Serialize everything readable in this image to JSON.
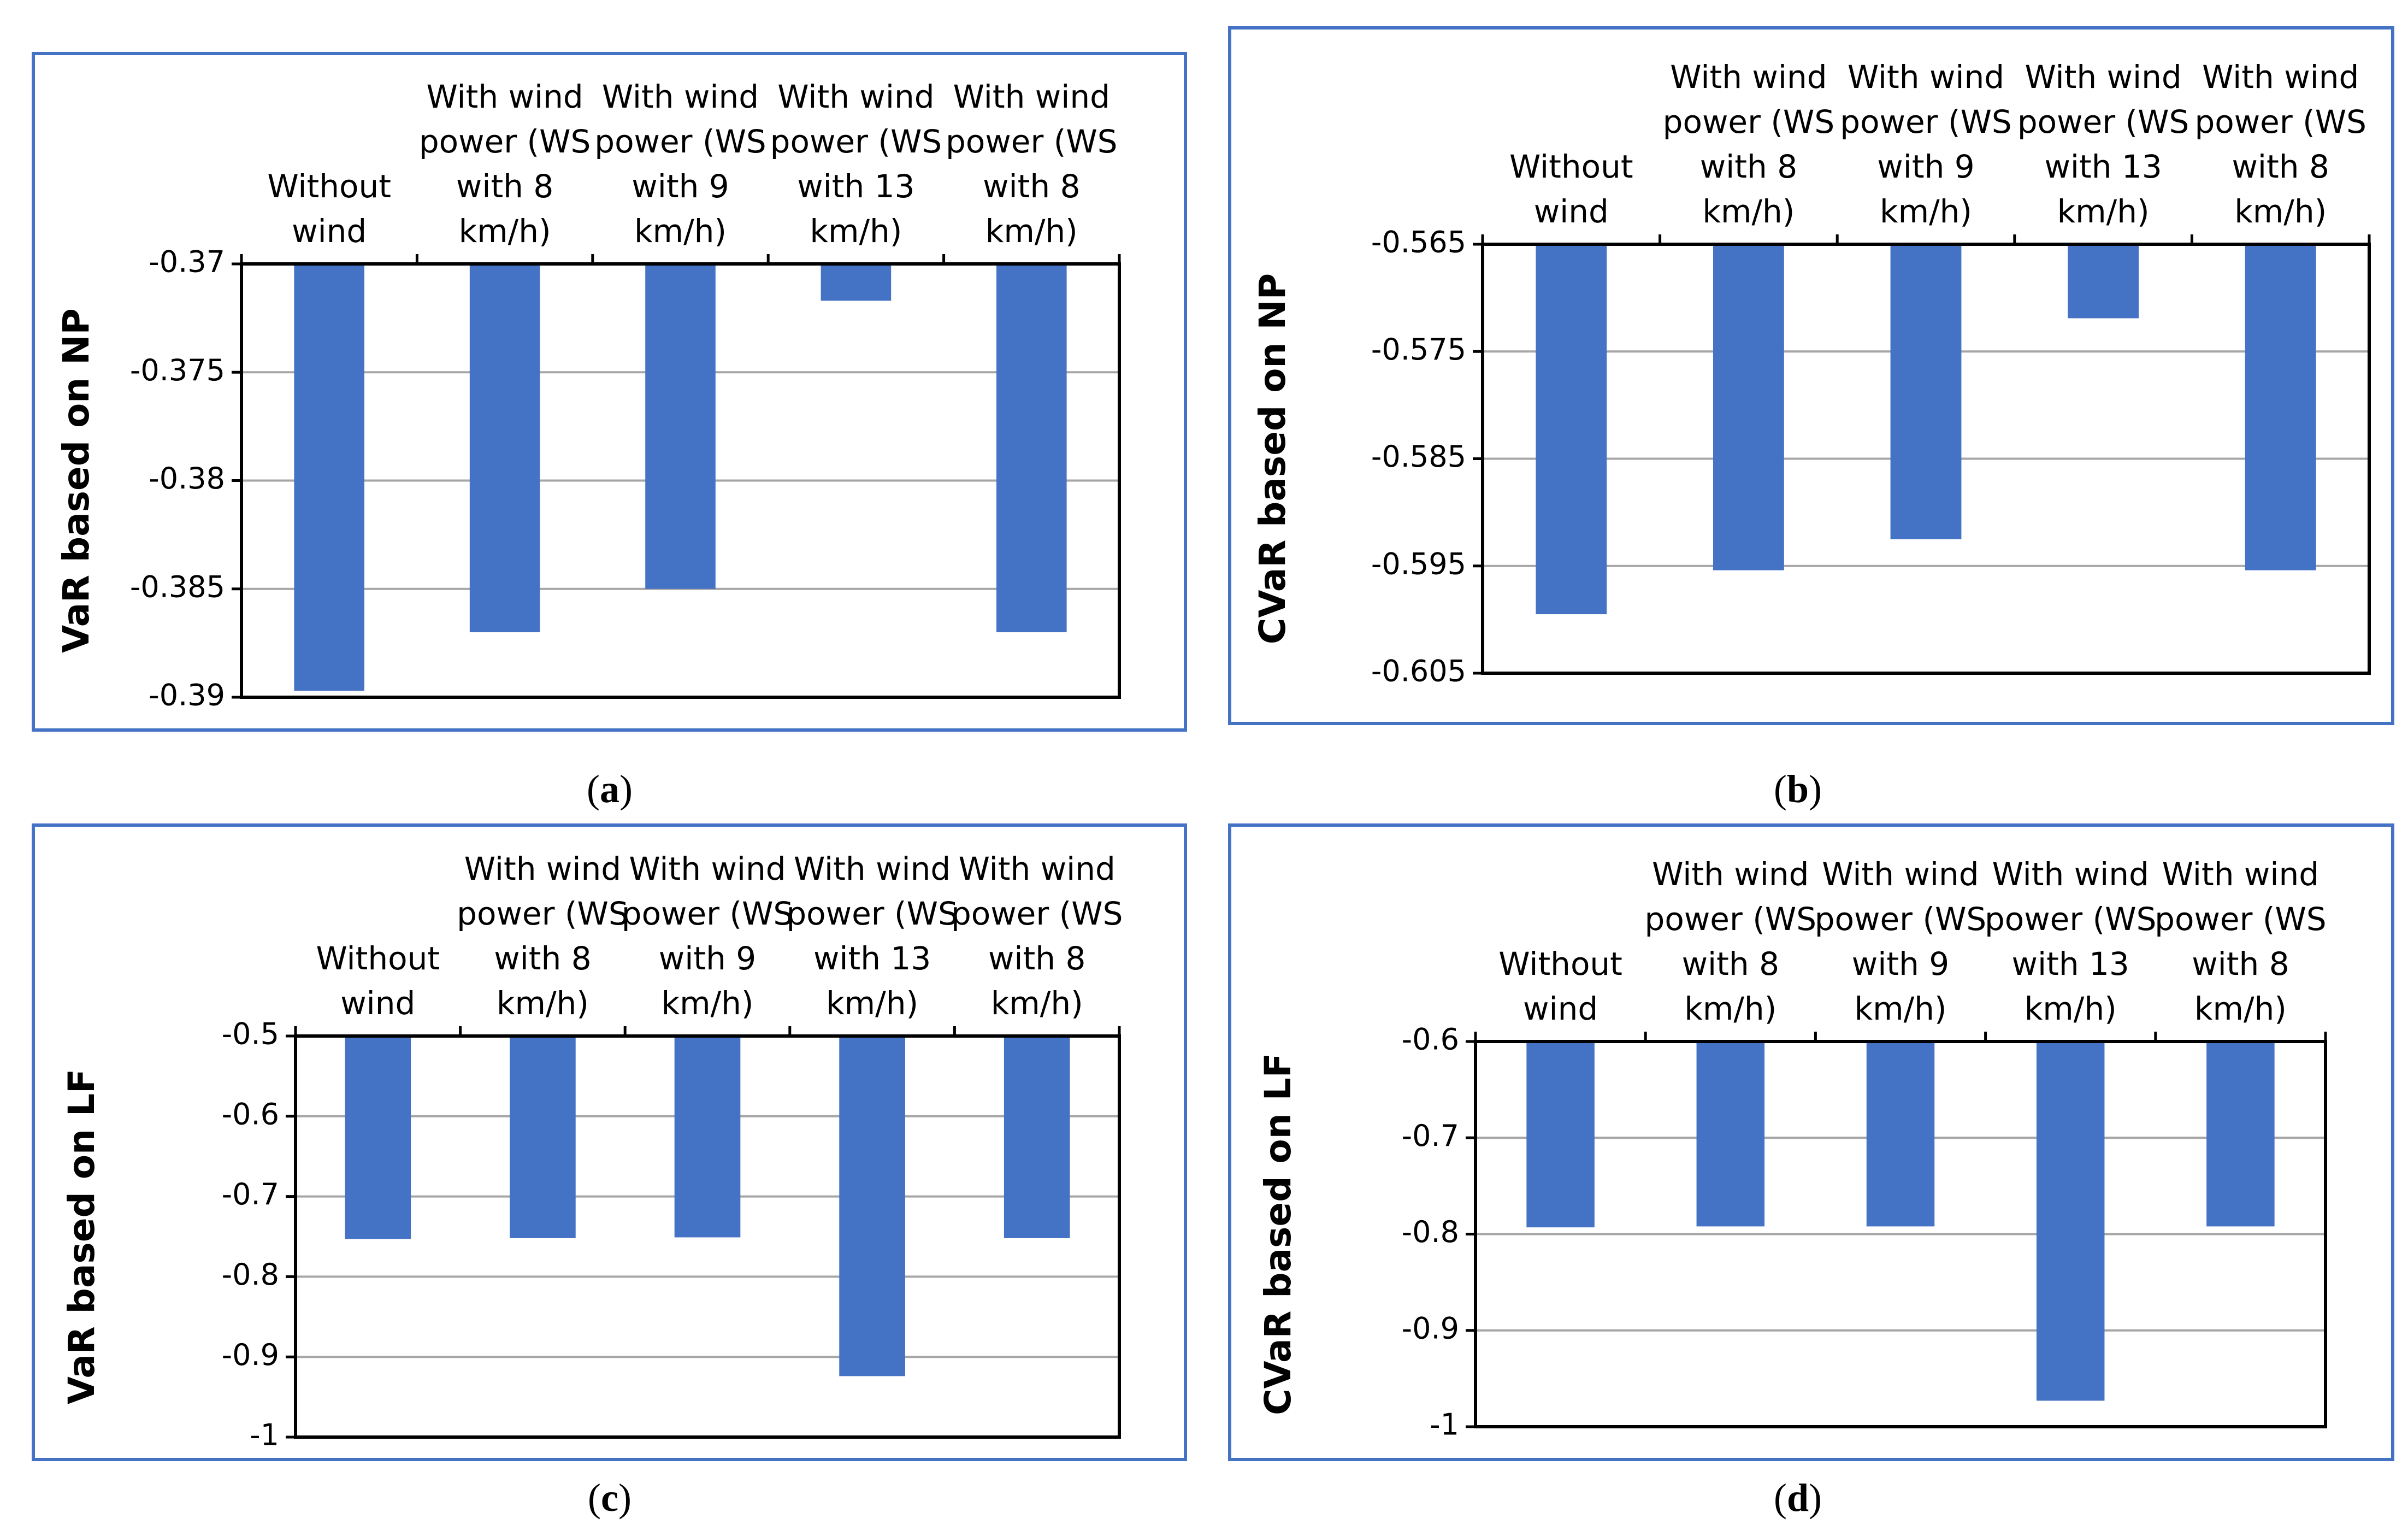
{
  "colors": {
    "bar": "#4472c4",
    "panel_border": "#4472c4",
    "gridline": "#a6a6a6",
    "plot_border": "#000000"
  },
  "captions": [
    "a",
    "b",
    "c",
    "d"
  ],
  "chart_data": [
    {
      "type": "bar",
      "categories": [
        [
          "Without",
          "wind"
        ],
        [
          "With wind",
          "power (WS",
          "with 8",
          "km/h)"
        ],
        [
          "With wind",
          "power (WS",
          "with 9",
          "km/h)"
        ],
        [
          "With wind",
          "power (WS",
          "with 13",
          "km/h)"
        ],
        [
          "With wind",
          "power (WS",
          "with 8",
          "km/h)"
        ]
      ],
      "values": [
        -0.3897,
        -0.387,
        -0.385,
        -0.3717,
        -0.387
      ],
      "ylabel": "VaR based on NP",
      "ylim": [
        -0.39,
        -0.37
      ],
      "yticks": [
        -0.37,
        -0.375,
        -0.38,
        -0.385,
        -0.39
      ],
      "ytick_labels": [
        "-0.37",
        "-0.375",
        "-0.38",
        "-0.385",
        "-0.39"
      ],
      "grid": true,
      "x_axis_position": "top"
    },
    {
      "type": "bar",
      "categories": [
        [
          "Without",
          "wind"
        ],
        [
          "With wind",
          "power (WS",
          "with 8",
          "km/h)"
        ],
        [
          "With wind",
          "power (WS",
          "with 9",
          "km/h)"
        ],
        [
          "With wind",
          "power (WS",
          "with 13",
          "km/h)"
        ],
        [
          "With wind",
          "power (WS",
          "with 8",
          "km/h)"
        ]
      ],
      "values": [
        -0.5995,
        -0.5954,
        -0.5925,
        -0.5719,
        -0.5954
      ],
      "ylabel": "CVaR based on NP",
      "ylim": [
        -0.605,
        -0.565
      ],
      "yticks": [
        -0.565,
        -0.575,
        -0.585,
        -0.595,
        -0.605
      ],
      "ytick_labels": [
        "-0.565",
        "-0.575",
        "-0.585",
        "-0.595",
        "-0.605"
      ],
      "grid": true,
      "x_axis_position": "top"
    },
    {
      "type": "bar",
      "categories": [
        [
          "Without",
          "wind"
        ],
        [
          "With wind",
          "power (WS",
          "with 8",
          "km/h)"
        ],
        [
          "With wind",
          "power (WS",
          "with 9",
          "km/h)"
        ],
        [
          "With wind",
          "power (WS",
          "with 13",
          "km/h)"
        ],
        [
          "With wind",
          "power (WS",
          "with 8",
          "km/h)"
        ]
      ],
      "values": [
        -0.753,
        -0.752,
        -0.751,
        -0.924,
        -0.752
      ],
      "ylabel": "VaR based on LF",
      "ylim": [
        -1,
        -0.5
      ],
      "yticks": [
        -0.5,
        -0.6,
        -0.7,
        -0.8,
        -0.9,
        -1
      ],
      "ytick_labels": [
        "-0.5",
        "-0.6",
        "-0.7",
        "-0.8",
        "-0.9",
        "-1"
      ],
      "grid": true,
      "x_axis_position": "top"
    },
    {
      "type": "bar",
      "categories": [
        [
          "Without",
          "wind"
        ],
        [
          "With wind",
          "power (WS",
          "with 8",
          "km/h)"
        ],
        [
          "With wind",
          "power (WS",
          "with 9",
          "km/h)"
        ],
        [
          "With wind",
          "power (WS",
          "with 13",
          "km/h)"
        ],
        [
          "With wind",
          "power (WS",
          "with 8",
          "km/h)"
        ]
      ],
      "values": [
        -0.793,
        -0.792,
        -0.792,
        -0.973,
        -0.792
      ],
      "ylabel": "CVaR based on LF",
      "ylim": [
        -1,
        -0.6
      ],
      "yticks": [
        -0.6,
        -0.7,
        -0.8,
        -0.9,
        -1
      ],
      "ytick_labels": [
        "-0.6",
        "-0.7",
        "-0.8",
        "-0.9",
        "-1"
      ],
      "grid": true,
      "x_axis_position": "top"
    }
  ]
}
